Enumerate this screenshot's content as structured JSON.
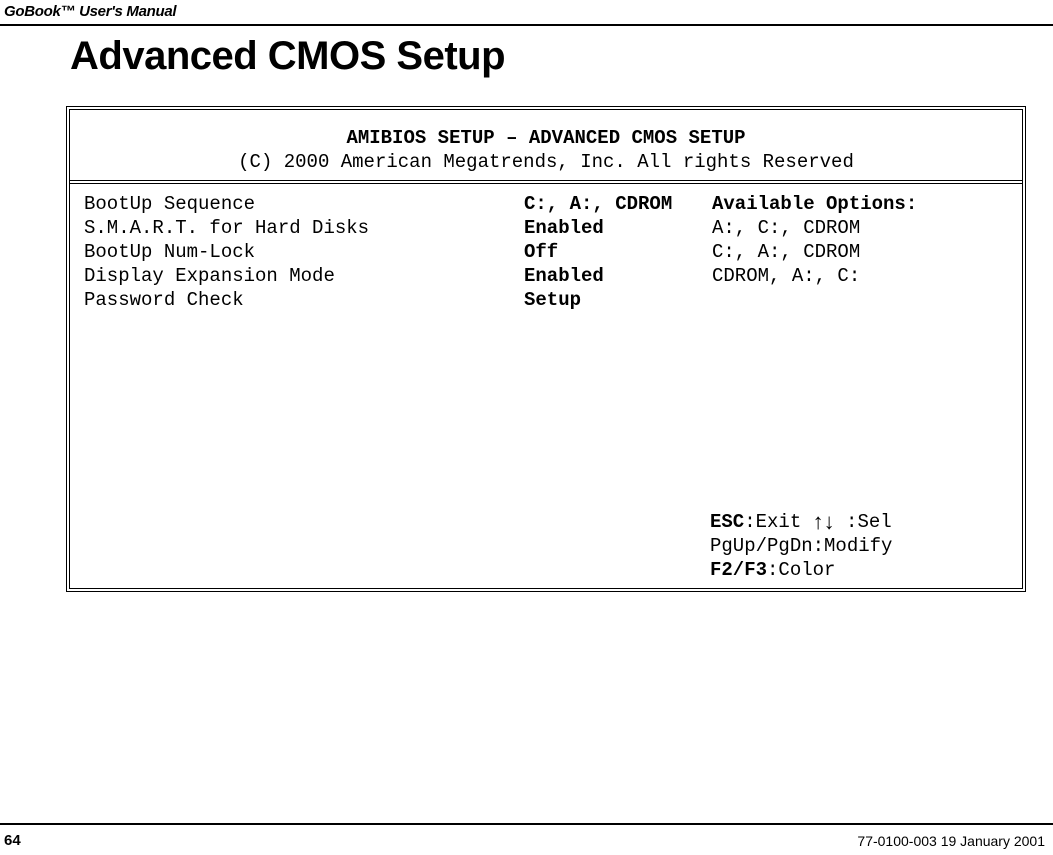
{
  "doc": {
    "header_title": "GoBook™ User's Manual",
    "page_heading": "Advanced CMOS Setup",
    "page_number": "64",
    "footer_right": "77-0100-003   19 January 2001"
  },
  "bios": {
    "title_line1": "AMIBIOS SETUP  – ADVANCED CMOS SETUP",
    "title_line2": "(C) 2000 American Megatrends, Inc. All rights Reserved",
    "settings": {
      "labels": [
        "BootUp Sequence",
        "S.M.A.R.T. for Hard Disks",
        "BootUp Num-Lock",
        "Display Expansion Mode",
        "Password Check"
      ],
      "values": [
        "C:, A:, CDROM",
        "Enabled",
        "Off",
        "Enabled",
        "Setup"
      ]
    },
    "options": {
      "heading": "Available Options:",
      "list": [
        "A:, C:, CDROM",
        "C:, A:, CDROM",
        "CDROM, A:, C:"
      ]
    },
    "help": {
      "esc_label": "ESC",
      "esc_text": ":Exit ",
      "arrows": "↑↓",
      "sel_text": " :Sel",
      "pg_text": "PgUp/PgDn:Modify",
      "f_label": "F2/F3",
      "f_text": ":Color"
    }
  }
}
